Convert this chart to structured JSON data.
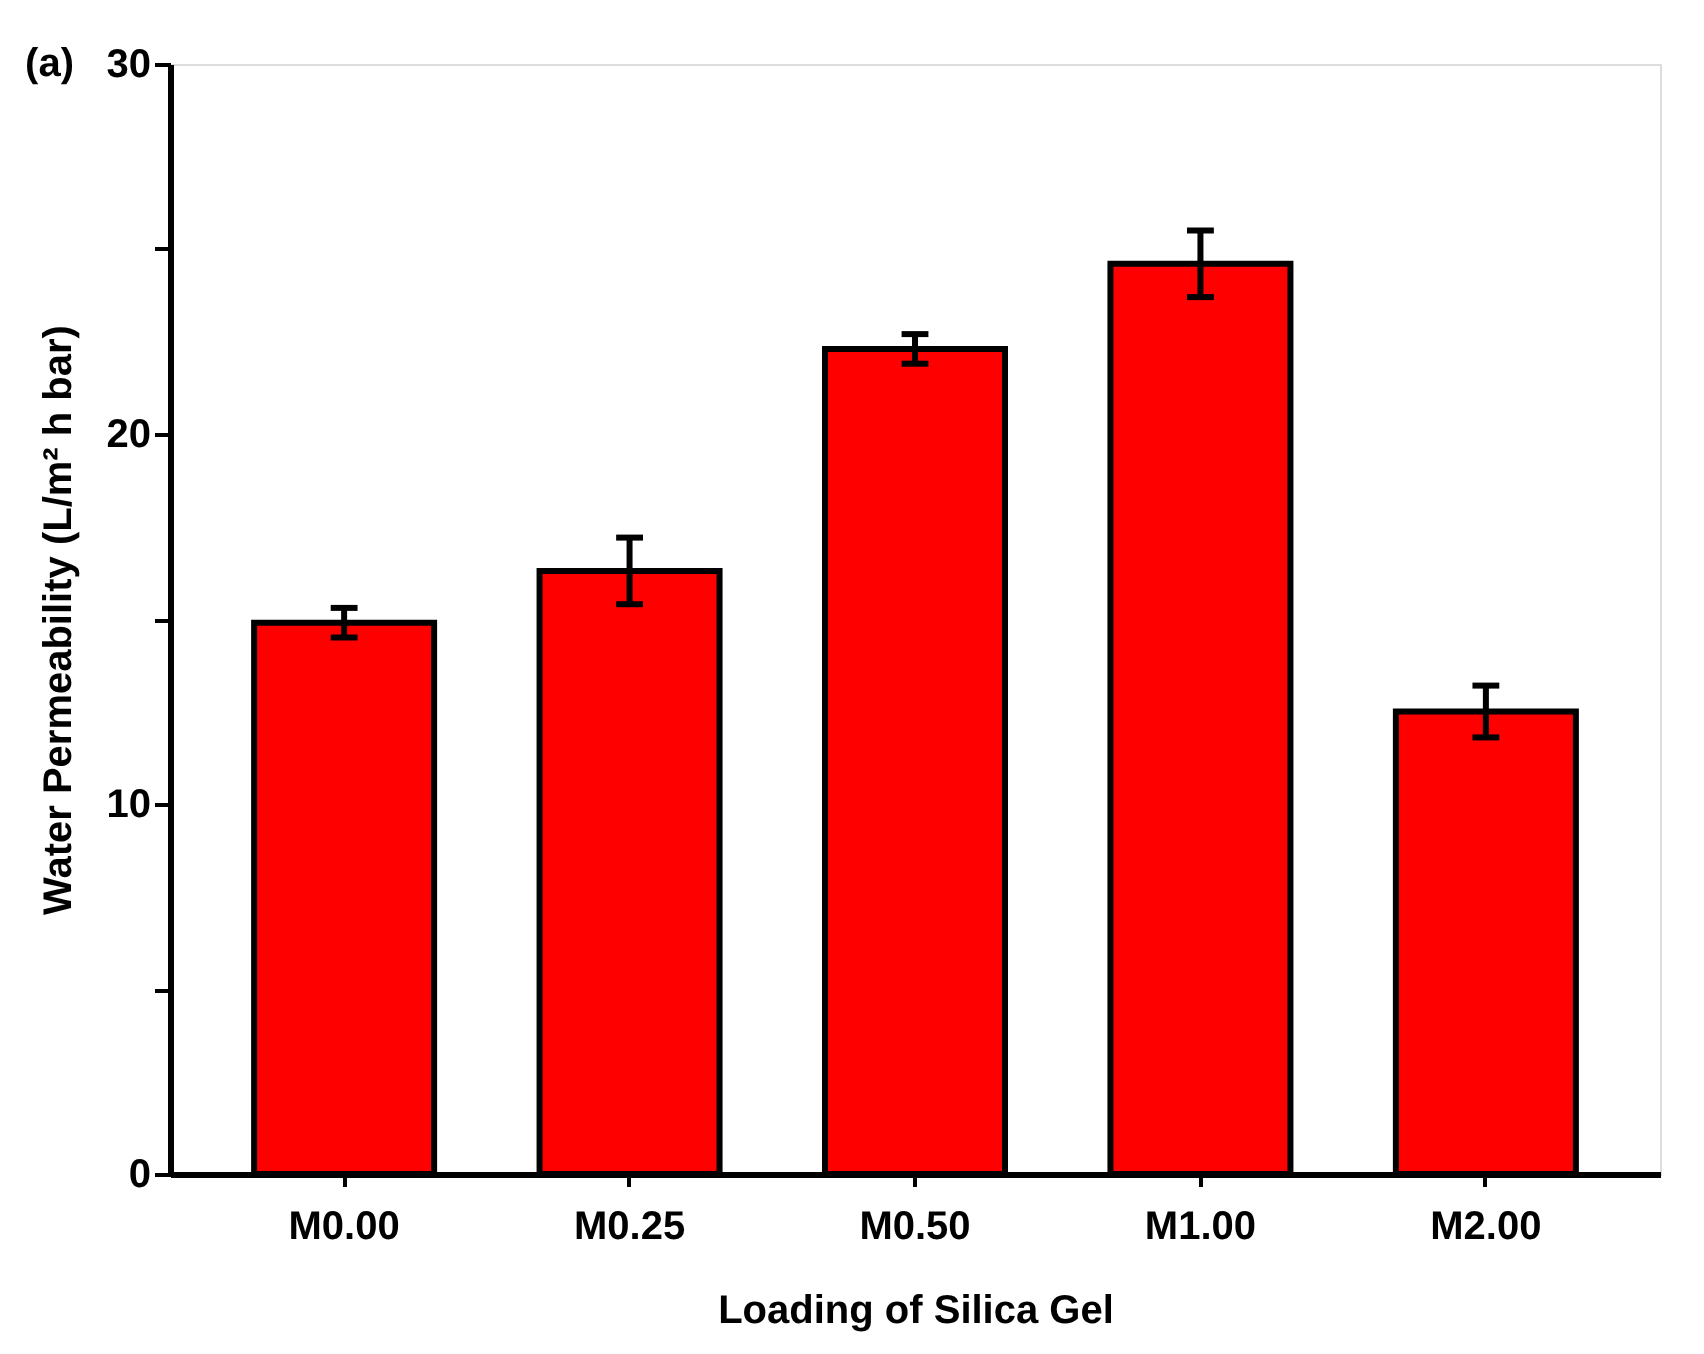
{
  "chart_data": {
    "type": "bar",
    "xlabel": "Loading of Silica Gel",
    "ylabel": "Water Permeability (L/m² h bar)",
    "annotations": [
      "(a)"
    ],
    "categories": [
      "M0.00",
      "M0.25",
      "M0.50",
      "M1.00",
      "M2.00"
    ],
    "values": [
      14.9,
      16.3,
      22.3,
      24.6,
      12.5
    ],
    "errors": [
      0.4,
      0.9,
      0.4,
      0.9,
      0.7
    ],
    "color": "#ff0000",
    "ylim": [
      0,
      30
    ],
    "yticks": [
      0,
      {
        "value": 5,
        "label": null
      },
      10,
      {
        "value": 15,
        "label": null
      },
      20,
      {
        "value": 25,
        "label": null
      },
      30
    ],
    "grid": false
  }
}
